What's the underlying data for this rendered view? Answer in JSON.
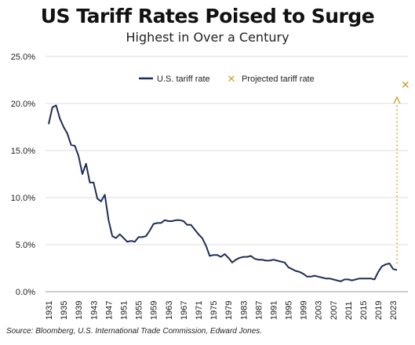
{
  "title": "US Tariff Rates Poised to Surge",
  "subtitle": "Highest in Over a Century",
  "source": "Source: Bloomberg, U.S. International Trade Commission, Edward Jones.",
  "colors": {
    "line": "#1f2d57",
    "projected": "#c9a227",
    "grid": "#dddddd",
    "axis_text": "#222222"
  },
  "chart_data": {
    "type": "line",
    "title": "US Tariff Rates Poised to Surge",
    "subtitle": "Highest in Over a Century",
    "xlabel": "",
    "ylabel": "",
    "xlim": [
      1931,
      2024
    ],
    "ylim": [
      0,
      25
    ],
    "y_ticks": [
      "0.0%",
      "5.0%",
      "10.0%",
      "15.0%",
      "20.0%",
      "25.0%"
    ],
    "y_tick_values": [
      0,
      5,
      10,
      15,
      20,
      25
    ],
    "x_ticks": [
      1931,
      1935,
      1939,
      1943,
      1947,
      1951,
      1955,
      1959,
      1963,
      1967,
      1971,
      1975,
      1979,
      1983,
      1987,
      1991,
      1995,
      1999,
      2003,
      2007,
      2011,
      2015,
      2019,
      2023
    ],
    "grid": "horizontal",
    "legend_position": "top-right",
    "series": [
      {
        "name": "U.S. tariff rate",
        "x": [
          1931,
          1932,
          1933,
          1934,
          1935,
          1936,
          1937,
          1938,
          1939,
          1940,
          1941,
          1942,
          1943,
          1944,
          1945,
          1946,
          1947,
          1948,
          1949,
          1950,
          1951,
          1952,
          1953,
          1954,
          1955,
          1956,
          1957,
          1958,
          1959,
          1960,
          1961,
          1962,
          1963,
          1964,
          1965,
          1966,
          1967,
          1968,
          1969,
          1970,
          1971,
          1972,
          1973,
          1974,
          1975,
          1976,
          1977,
          1978,
          1979,
          1980,
          1981,
          1982,
          1983,
          1984,
          1985,
          1986,
          1987,
          1988,
          1989,
          1990,
          1991,
          1992,
          1993,
          1994,
          1995,
          1996,
          1997,
          1998,
          1999,
          2000,
          2001,
          2002,
          2003,
          2004,
          2005,
          2006,
          2007,
          2008,
          2009,
          2010,
          2011,
          2012,
          2013,
          2014,
          2015,
          2016,
          2017,
          2018,
          2019,
          2020,
          2021,
          2022,
          2023,
          2024
        ],
        "values": [
          17.8,
          19.6,
          19.8,
          18.4,
          17.5,
          16.8,
          15.6,
          15.5,
          14.4,
          12.5,
          13.6,
          11.6,
          11.6,
          9.9,
          9.6,
          10.3,
          7.6,
          5.9,
          5.7,
          6.1,
          5.7,
          5.3,
          5.4,
          5.3,
          5.8,
          5.8,
          5.9,
          6.5,
          7.2,
          7.3,
          7.3,
          7.6,
          7.5,
          7.5,
          7.6,
          7.6,
          7.5,
          7.1,
          7.1,
          6.6,
          6.1,
          5.7,
          4.9,
          3.8,
          3.9,
          3.9,
          3.7,
          4.0,
          3.6,
          3.1,
          3.4,
          3.6,
          3.7,
          3.7,
          3.8,
          3.5,
          3.4,
          3.4,
          3.3,
          3.3,
          3.4,
          3.3,
          3.2,
          3.1,
          2.6,
          2.4,
          2.2,
          2.1,
          1.9,
          1.6,
          1.6,
          1.7,
          1.6,
          1.5,
          1.4,
          1.4,
          1.3,
          1.2,
          1.1,
          1.3,
          1.3,
          1.2,
          1.3,
          1.4,
          1.4,
          1.4,
          1.4,
          1.3,
          2.1,
          2.7,
          2.9,
          3.0,
          2.4,
          2.3
        ]
      },
      {
        "name": "Projected tariff rate",
        "x": [
          2025
        ],
        "values": [
          22.0
        ]
      }
    ]
  }
}
